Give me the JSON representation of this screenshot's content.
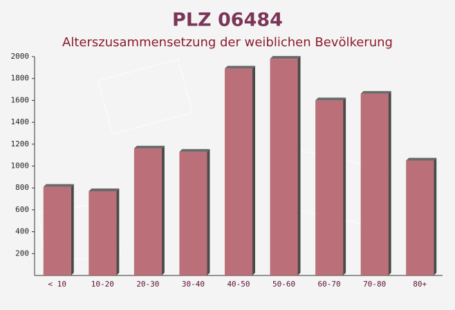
{
  "chart_data": {
    "type": "bar",
    "title": "PLZ 06484",
    "subtitle": "Alterszusammensetzung der weiblichen Bevölkerung",
    "categories": [
      "< 10",
      "10-20",
      "20-30",
      "30-40",
      "40-50",
      "50-60",
      "60-70",
      "70-80",
      "80+"
    ],
    "values": [
      810,
      770,
      1160,
      1130,
      1890,
      1980,
      1600,
      1660,
      1050
    ],
    "color": "#b5606a",
    "ylim": [
      0,
      2000
    ],
    "yticks": [
      200,
      400,
      600,
      800,
      1000,
      1200,
      1400,
      1600,
      1800,
      2000
    ]
  }
}
